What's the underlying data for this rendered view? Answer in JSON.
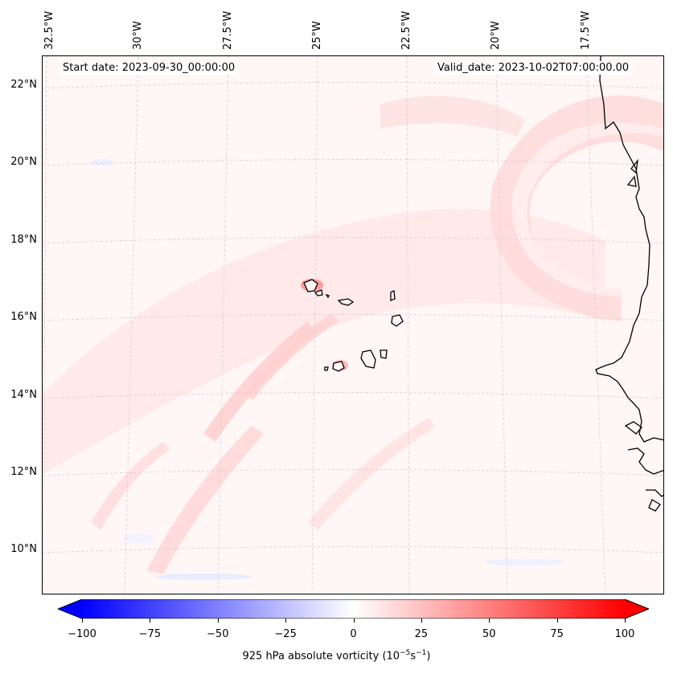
{
  "header": {
    "start_date": "Start date: 2023-09-30_00:00:00",
    "valid_date": "Valid_date: 2023-10-02T07:00:00.00"
  },
  "longitude_labels": [
    "32.5°W",
    "30°W",
    "27.5°W",
    "25°W",
    "22.5°W",
    "20°W",
    "17.5°W"
  ],
  "latitude_labels": [
    "22°N",
    "20°N",
    "18°N",
    "16°N",
    "14°N",
    "12°N",
    "10°N"
  ],
  "colorbar": {
    "min": -100,
    "max": 100,
    "tick_labels": [
      "−100",
      "−75",
      "−50",
      "−25",
      "0",
      "25",
      "50",
      "75",
      "100"
    ],
    "tick_values": [
      -100,
      -75,
      -50,
      -25,
      0,
      25,
      50,
      75,
      100
    ],
    "label_prefix": "925 hPa absolute vorticity (10",
    "label_exp1": "−5",
    "label_mid": "s",
    "label_exp2": "−1",
    "label_suffix": ")",
    "low_color": "#0000ff",
    "mid_color": "#ffffff",
    "high_color": "#ff0000"
  },
  "colors": {
    "coastline": "#000000",
    "gridline": "#c8c8c8",
    "field_base": "#fff6f6",
    "field_positive": "#ffe0e0",
    "field_negative": "#f0f2ff"
  }
}
